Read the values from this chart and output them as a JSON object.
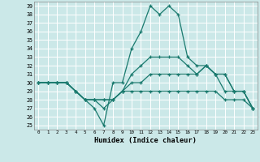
{
  "title": "",
  "xlabel": "Humidex (Indice chaleur)",
  "ylabel": "",
  "background_color": "#cbe8e8",
  "grid_color": "#ffffff",
  "line_color": "#1a7a6e",
  "xlim": [
    -0.5,
    23.5
  ],
  "ylim": [
    24.5,
    39.5
  ],
  "yticks": [
    25,
    26,
    27,
    28,
    29,
    30,
    31,
    32,
    33,
    34,
    35,
    36,
    37,
    38,
    39
  ],
  "xticks": [
    0,
    1,
    2,
    3,
    4,
    5,
    6,
    7,
    8,
    9,
    10,
    11,
    12,
    13,
    14,
    15,
    16,
    17,
    18,
    19,
    20,
    21,
    22,
    23
  ],
  "series": [
    [
      30,
      30,
      30,
      30,
      29,
      28,
      27,
      25,
      30,
      30,
      34,
      36,
      39,
      38,
      39,
      38,
      33,
      32,
      32,
      31,
      29,
      29,
      29,
      27
    ],
    [
      30,
      30,
      30,
      30,
      29,
      28,
      28,
      27,
      28,
      29,
      31,
      32,
      33,
      33,
      33,
      33,
      32,
      31,
      32,
      31,
      31,
      29,
      29,
      27
    ],
    [
      30,
      30,
      30,
      30,
      29,
      28,
      28,
      28,
      28,
      29,
      30,
      30,
      31,
      31,
      31,
      31,
      31,
      31,
      32,
      31,
      31,
      29,
      29,
      27
    ],
    [
      30,
      30,
      30,
      30,
      29,
      28,
      28,
      28,
      28,
      29,
      29,
      29,
      29,
      29,
      29,
      29,
      29,
      29,
      29,
      29,
      28,
      28,
      28,
      27
    ]
  ]
}
